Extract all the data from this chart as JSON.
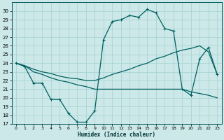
{
  "xlabel": "Humidex (Indice chaleur)",
  "bg_color": "#cce8e8",
  "grid_color": "#aad4d4",
  "line_color": "#006060",
  "xlim": [
    -0.5,
    23.5
  ],
  "ylim": [
    17,
    31
  ],
  "xticks": [
    0,
    1,
    2,
    3,
    4,
    5,
    6,
    7,
    8,
    9,
    10,
    11,
    12,
    13,
    14,
    15,
    16,
    17,
    18,
    19,
    20,
    21,
    22,
    23
  ],
  "yticks": [
    17,
    18,
    19,
    20,
    21,
    22,
    23,
    24,
    25,
    26,
    27,
    28,
    29,
    30
  ],
  "curve1_x": [
    0,
    1,
    2,
    3,
    4,
    5,
    6,
    7,
    8,
    9,
    10,
    11,
    12,
    13,
    14,
    15,
    16,
    17,
    18,
    19,
    20,
    21,
    22,
    23
  ],
  "curve1_y": [
    24,
    23.6,
    21.7,
    21.7,
    19.8,
    19.8,
    18.2,
    17.2,
    17.2,
    18.5,
    26.7,
    28.8,
    29.0,
    29.5,
    29.3,
    30.2,
    29.8,
    28.0,
    27.7,
    21.0,
    20.3,
    24.5,
    25.8,
    22.7
  ],
  "curve2_x": [
    0,
    1,
    2,
    3,
    4,
    5,
    6,
    7,
    8,
    9,
    10,
    11,
    12,
    13,
    14,
    15,
    16,
    17,
    18,
    19,
    20,
    21,
    22,
    23
  ],
  "curve2_y": [
    24.0,
    23.7,
    23.3,
    23.0,
    22.8,
    22.5,
    22.3,
    22.2,
    22.0,
    22.0,
    22.3,
    22.7,
    23.0,
    23.3,
    23.7,
    24.0,
    24.5,
    24.8,
    25.2,
    25.5,
    25.7,
    26.0,
    25.3,
    22.7
  ],
  "curve3_x": [
    0,
    1,
    2,
    3,
    4,
    5,
    6,
    7,
    8,
    9,
    10,
    11,
    12,
    13,
    14,
    15,
    16,
    17,
    18,
    19,
    20,
    21,
    22,
    23
  ],
  "curve3_y": [
    24.0,
    23.7,
    23.0,
    22.7,
    22.3,
    22.0,
    21.8,
    21.5,
    21.3,
    21.0,
    21.0,
    21.0,
    21.0,
    21.0,
    21.0,
    21.0,
    21.0,
    21.0,
    21.0,
    21.0,
    20.7,
    20.5,
    20.3,
    20.0
  ]
}
